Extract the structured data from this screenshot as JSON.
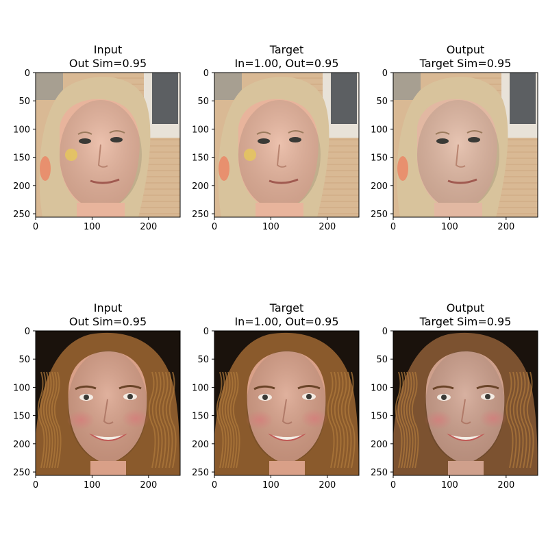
{
  "chart_data": [
    {
      "type": "heatmap",
      "row": 0,
      "col": 0,
      "title_lines": [
        "Input",
        "Out Sim=0.95"
      ],
      "image_size": [
        256,
        256
      ],
      "xlim": [
        0,
        256
      ],
      "ylim": [
        256,
        0
      ],
      "xticks": [
        0,
        100,
        200
      ],
      "yticks": [
        0,
        50,
        100,
        150,
        200,
        250
      ],
      "xtick_labels": [
        "0",
        "100",
        "200"
      ],
      "ytick_labels": [
        "0",
        "50",
        "100",
        "150",
        "200",
        "250"
      ],
      "image_content": "face-blonde-woman-brick-wall",
      "variant": "input"
    },
    {
      "type": "heatmap",
      "row": 0,
      "col": 1,
      "title_lines": [
        "Target",
        "In=1.00, Out=0.95"
      ],
      "image_size": [
        256,
        256
      ],
      "xlim": [
        0,
        256
      ],
      "ylim": [
        256,
        0
      ],
      "xticks": [
        0,
        100,
        200
      ],
      "yticks": [
        0,
        50,
        100,
        150,
        200,
        250
      ],
      "xtick_labels": [
        "0",
        "100",
        "200"
      ],
      "ytick_labels": [
        "0",
        "50",
        "100",
        "150",
        "200",
        "250"
      ],
      "image_content": "face-blonde-woman-brick-wall",
      "variant": "target"
    },
    {
      "type": "heatmap",
      "row": 0,
      "col": 2,
      "title_lines": [
        "Output",
        "Target Sim=0.95"
      ],
      "image_size": [
        256,
        256
      ],
      "xlim": [
        0,
        256
      ],
      "ylim": [
        256,
        0
      ],
      "xticks": [
        0,
        100,
        200
      ],
      "yticks": [
        0,
        50,
        100,
        150,
        200,
        250
      ],
      "xtick_labels": [
        "0",
        "100",
        "200"
      ],
      "ytick_labels": [
        "0",
        "50",
        "100",
        "150",
        "200",
        "250"
      ],
      "image_content": "face-blonde-woman-brick-wall",
      "variant": "output"
    },
    {
      "type": "heatmap",
      "row": 1,
      "col": 0,
      "title_lines": [
        "Input",
        "Out Sim=0.95"
      ],
      "image_size": [
        256,
        256
      ],
      "xlim": [
        0,
        256
      ],
      "ylim": [
        256,
        0
      ],
      "xticks": [
        0,
        100,
        200
      ],
      "yticks": [
        0,
        50,
        100,
        150,
        200,
        250
      ],
      "xtick_labels": [
        "0",
        "100",
        "200"
      ],
      "ytick_labels": [
        "0",
        "50",
        "100",
        "150",
        "200",
        "250"
      ],
      "image_content": "face-smiling-woman-curly-hair",
      "variant": "input"
    },
    {
      "type": "heatmap",
      "row": 1,
      "col": 1,
      "title_lines": [
        "Target",
        "In=1.00, Out=0.95"
      ],
      "image_size": [
        256,
        256
      ],
      "xlim": [
        0,
        256
      ],
      "ylim": [
        256,
        0
      ],
      "xticks": [
        0,
        100,
        200
      ],
      "yticks": [
        0,
        50,
        100,
        150,
        200,
        250
      ],
      "xtick_labels": [
        "0",
        "100",
        "200"
      ],
      "ytick_labels": [
        "0",
        "50",
        "100",
        "150",
        "200",
        "250"
      ],
      "image_content": "face-smiling-woman-curly-hair",
      "variant": "target"
    },
    {
      "type": "heatmap",
      "row": 1,
      "col": 2,
      "title_lines": [
        "Output",
        "Target Sim=0.95"
      ],
      "image_size": [
        256,
        256
      ],
      "xlim": [
        0,
        256
      ],
      "ylim": [
        256,
        0
      ],
      "xticks": [
        0,
        100,
        200
      ],
      "yticks": [
        0,
        50,
        100,
        150,
        200,
        250
      ],
      "xtick_labels": [
        "0",
        "100",
        "200"
      ],
      "ytick_labels": [
        "0",
        "50",
        "100",
        "150",
        "200",
        "250"
      ],
      "image_content": "face-smiling-woman-curly-hair",
      "variant": "output"
    }
  ],
  "colors": {
    "text": "#000000",
    "axis": "#000000",
    "background": "#ffffff",
    "brick": "#d9b994",
    "window_frame": "#e8e2d8",
    "window_glass": "#5c5f62",
    "blonde_hair": "#d8c39c",
    "fair_skin": "#e8b49c",
    "dark_background": "#1a120c",
    "brown_hair": "#8a5a2c",
    "warm_skin": "#d9a088",
    "cheek": "#d98a86",
    "lips": "#c05a56",
    "teeth": "#f4efe6",
    "eye": "#3a3a36"
  }
}
